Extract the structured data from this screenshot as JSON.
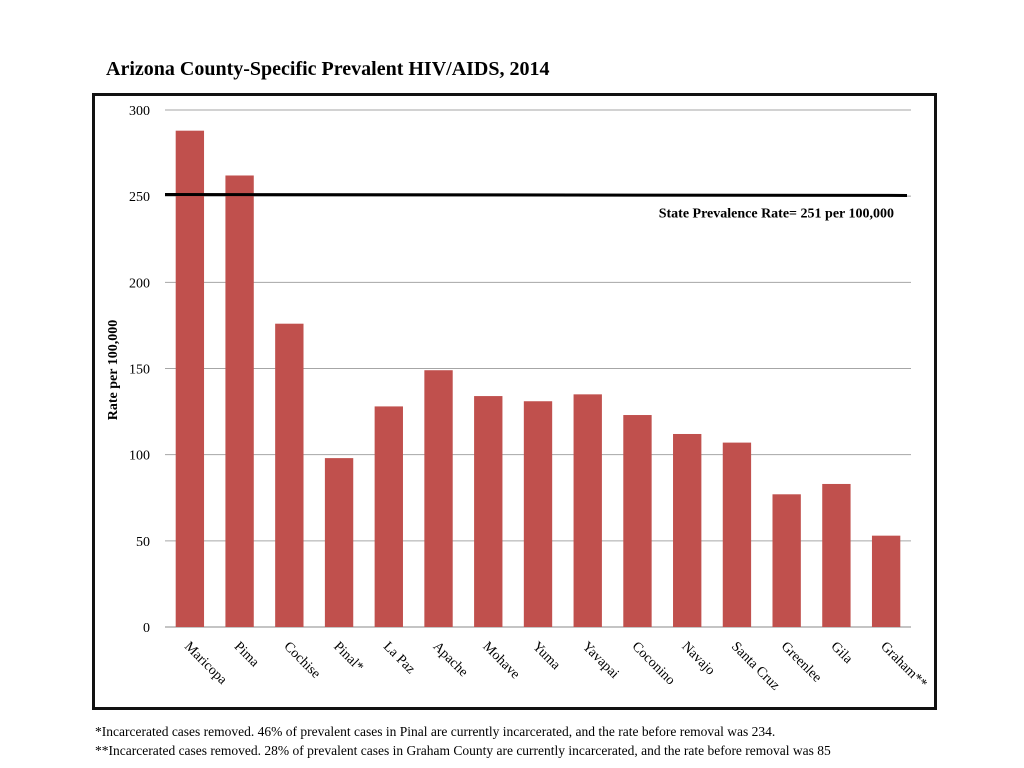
{
  "chart_data": {
    "type": "bar",
    "title": "Arizona County-Specific Prevalent HIV/AIDS, 2014",
    "ylabel": "Rate per 100,000",
    "xlabel": "",
    "ylim": [
      0,
      300
    ],
    "yticks": [
      0,
      50,
      100,
      150,
      200,
      250,
      300
    ],
    "grid": true,
    "categories": [
      "Maricopa",
      "Pima",
      "Cochise",
      "Pinal*",
      "La Paz",
      "Apache",
      "Mohave",
      "Yuma",
      "Yavapai",
      "Coconino",
      "Navajo",
      "Santa Cruz",
      "Greenlee",
      "Gila",
      "Graham**"
    ],
    "values": [
      288,
      262,
      176,
      98,
      128,
      149,
      134,
      131,
      135,
      123,
      112,
      107,
      77,
      83,
      53
    ],
    "bar_color": "#c0504d",
    "reference_line": {
      "value": 251,
      "label": "State Prevalence Rate= 251 per 100,000"
    }
  },
  "footnotes": [
    "*Incarcerated cases removed. 46% of prevalent cases in Pinal are currently incarcerated, and the rate before removal was 234.",
    "**Incarcerated cases removed. 28% of prevalent cases in Graham County are currently incarcerated, and the rate before removal was 85"
  ]
}
